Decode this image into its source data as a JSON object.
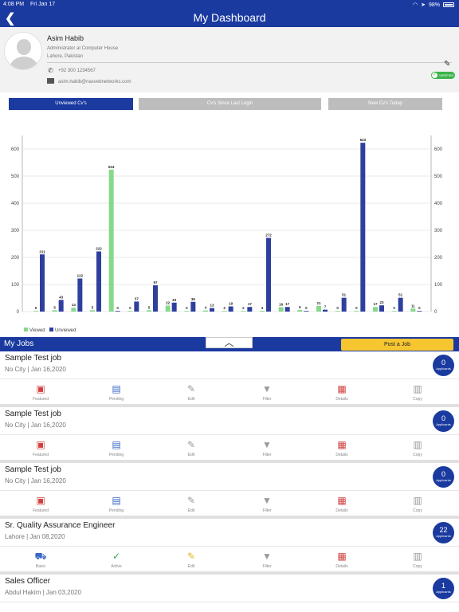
{
  "status": {
    "time": "4:08 PM",
    "date": "Fri Jan 17",
    "battery": "98%"
  },
  "header": {
    "title": "My Dashboard"
  },
  "profile": {
    "name": "Asim Habib",
    "role": "Administrator at Computer House",
    "location": "Lahore, Pakistan",
    "phone": "+92 300 1234567",
    "email": "asim.habib@nasvebnetworks.com",
    "verified_label": "VERIFIED"
  },
  "tabs": [
    {
      "label": "Unviewed Cv's",
      "active": true
    },
    {
      "label": "Cv's Since Last Login",
      "active": false
    },
    {
      "label": "New Cv's Today",
      "active": false
    }
  ],
  "chart_data": {
    "type": "bar",
    "ylim": [
      0,
      650
    ],
    "yticks": [
      0,
      100,
      200,
      300,
      400,
      500,
      600
    ],
    "grid": true,
    "legend": "bottom-left",
    "series": [
      {
        "name": "Viewed",
        "color": "#86d98a",
        "values": [
          0,
          5,
          14,
          5,
          524,
          0,
          5,
          22,
          0,
          4,
          2,
          2,
          3,
          16,
          6,
          21,
          0,
          0,
          17,
          0,
          11
        ]
      },
      {
        "name": "Unviewed",
        "color": "#2e3f9e",
        "values": [
          211,
          43,
          122,
          222,
          0,
          37,
          97,
          33,
          36,
          13,
          19,
          17,
          272,
          17,
          0,
          7,
          51,
          623,
          23,
          51,
          0
        ]
      }
    ]
  },
  "jobs": {
    "title": "My Jobs",
    "collapse_icon": "chevron-up-icon",
    "post_job_label": "Post a Job",
    "applicants_label": "Applicants",
    "items": [
      {
        "title": "Sample Test job",
        "location_date": "No City | Jan 16,2020",
        "applicants": "0",
        "actions": [
          {
            "label": "Featured",
            "icon": "featured-icon"
          },
          {
            "label": "Pending",
            "icon": "pending-icon"
          },
          {
            "label": "Edit",
            "icon": "edit-icon"
          },
          {
            "label": "Filter",
            "icon": "filter-icon"
          },
          {
            "label": "Details",
            "icon": "details-icon"
          },
          {
            "label": "Copy",
            "icon": "copy-icon"
          }
        ]
      },
      {
        "title": "Sample Test job",
        "location_date": "No City | Jan 16,2020",
        "applicants": "0",
        "actions": [
          {
            "label": "Featured",
            "icon": "featured-icon"
          },
          {
            "label": "Pending",
            "icon": "pending-icon"
          },
          {
            "label": "Edit",
            "icon": "edit-icon"
          },
          {
            "label": "Filter",
            "icon": "filter-icon"
          },
          {
            "label": "Details",
            "icon": "details-icon"
          },
          {
            "label": "Copy",
            "icon": "copy-icon"
          }
        ]
      },
      {
        "title": "Sample Test job",
        "location_date": "No City | Jan 16,2020",
        "applicants": "0",
        "actions": [
          {
            "label": "Featured",
            "icon": "featured-icon"
          },
          {
            "label": "Pending",
            "icon": "pending-icon"
          },
          {
            "label": "Edit",
            "icon": "edit-icon"
          },
          {
            "label": "Filter",
            "icon": "filter-icon"
          },
          {
            "label": "Details",
            "icon": "details-icon"
          },
          {
            "label": "Copy",
            "icon": "copy-icon"
          }
        ]
      },
      {
        "title": "Sr. Quality Assurance Engineer",
        "location_date": "Lahore | Jan 08,2020",
        "applicants": "22",
        "actions": [
          {
            "label": "Basic",
            "icon": "cart-icon"
          },
          {
            "label": "Active",
            "icon": "check-icon"
          },
          {
            "label": "Edit",
            "icon": "edit-icon"
          },
          {
            "label": "Filter",
            "icon": "filter-icon"
          },
          {
            "label": "Details",
            "icon": "details-icon"
          },
          {
            "label": "Copy",
            "icon": "copy-icon"
          }
        ]
      },
      {
        "title": "Sales Officer",
        "location_date": "Abdul Hakim | Jan 03,2020",
        "applicants": "1",
        "actions": []
      }
    ]
  }
}
